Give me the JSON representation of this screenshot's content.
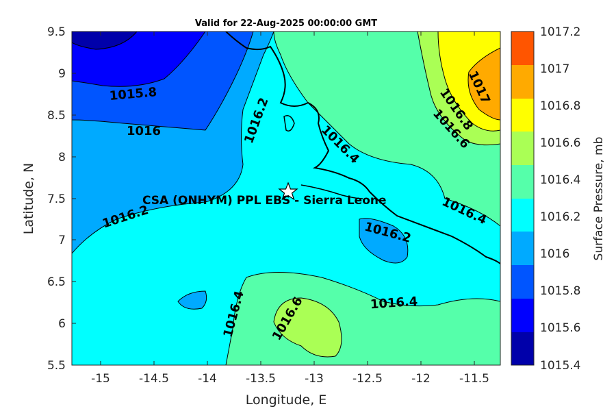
{
  "title": "Valid for 22-Aug-2025 00:00:00 GMT",
  "xlabel": "Longitude, E",
  "ylabel": "Latitude, N",
  "colorbar_label": "Surface Pressure, mb",
  "site_label": "CSA (ONHYM) PPL EBS  - Sierra Leone",
  "x_ticks": [
    "-15",
    "-14.5",
    "-14",
    "-13.5",
    "-13",
    "-12.5",
    "-12",
    "-11.5"
  ],
  "y_ticks": [
    "9.5",
    "9",
    "8.5",
    "8",
    "7.5",
    "7",
    "6.5",
    "6",
    "5.5"
  ],
  "colorbar_ticks": [
    "1017.2",
    "1017",
    "1016.8",
    "1016.6",
    "1016.4",
    "1016.2",
    "1016",
    "1015.8",
    "1015.6",
    "1015.4"
  ],
  "colorbar_colors": [
    "#ff5500",
    "#ffaa00",
    "#ffff00",
    "#aaff55",
    "#55ffaa",
    "#00ffff",
    "#00aaff",
    "#0055ff",
    "#0000ff",
    "#0000aa"
  ],
  "contour_labels": {
    "c1": "1015.8",
    "c2": "1016",
    "c3": "1016.2",
    "c4": "1016.2",
    "c5": "1016.4",
    "c6": "1016.2",
    "c7": "1016.4",
    "c8": "1017",
    "c9": "1016.8",
    "c10": "1016.6",
    "c11": "1016.4",
    "c12": "1016.6",
    "c13": "1016.4"
  },
  "chart_data": {
    "type": "heatmap",
    "xlim": [
      -15.25,
      -11.25
    ],
    "ylim": [
      5.5,
      9.5
    ],
    "site": {
      "lon": -13.22,
      "lat": 7.6
    },
    "colorbar_range": [
      1015.4,
      1017.2
    ],
    "contour_levels": [
      1015.4,
      1015.6,
      1015.8,
      1016.0,
      1016.2,
      1016.4,
      1016.6,
      1016.8,
      1017.0,
      1017.2
    ]
  }
}
